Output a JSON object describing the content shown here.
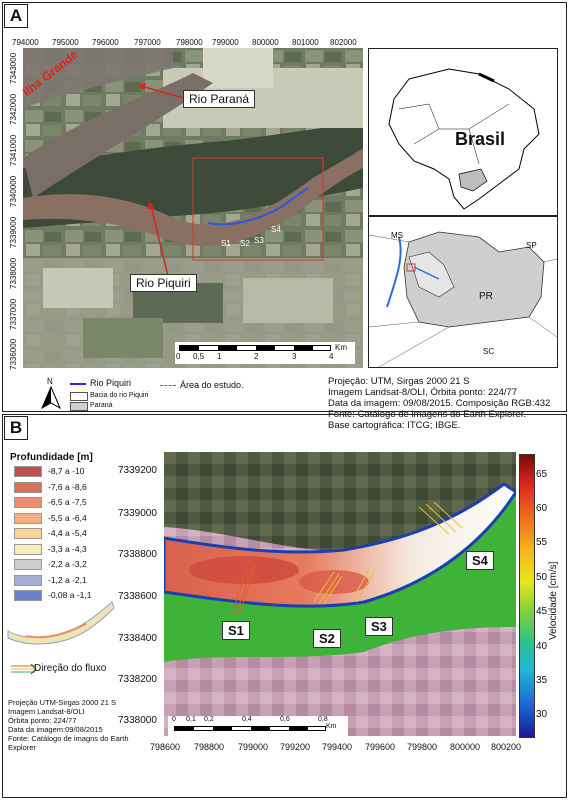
{
  "panel_a": {
    "letter": "A",
    "x_ticks": [
      "794000",
      "795000",
      "796000",
      "797000",
      "798000",
      "799000",
      "800000",
      "801000",
      "802000"
    ],
    "y_ticks": [
      "7343000",
      "7342000",
      "7341000",
      "7340000",
      "7339000",
      "7338000",
      "7337000",
      "7336000"
    ],
    "labels": {
      "ilha_grande": "Ilha Grande",
      "rio_parana": "Rio Paraná",
      "rio_piquiri": "Rio Piquiri",
      "s1": "S1",
      "s2": "S2",
      "s3": "S3",
      "s4": "S4"
    },
    "scalebar": {
      "ticks": [
        "0",
        "0,5",
        "1",
        "2",
        "3",
        "4"
      ],
      "unit": "Km"
    },
    "inset_brasil": {
      "label": "Brasil"
    },
    "inset_parana": {
      "ms": "MS",
      "sp": "SP",
      "pr": "PR",
      "sc": "SC"
    },
    "north": "N",
    "legend": {
      "rio_piquiri": "Rio Piquiri",
      "area_estudo": "Área do estudo.",
      "bacia": "Bacia do rio Piquiri",
      "parana": "Paraná"
    },
    "meta": [
      "Projeção: UTM, Sirgas 2000 21 S",
      "Imagem Landsat-8/OLI, Órbita ponto: 224/77",
      "Data da imagem: 09/08/2015. Composição RGB:432",
      "Fonte: Catálogo de imagens do Earth Explorer.",
      "Base cartográfica: ITCG; IBGE."
    ]
  },
  "panel_b": {
    "letter": "B",
    "depth_legend": {
      "title": "Profundidade [m]",
      "classes": [
        {
          "label": "-8,7 a -10",
          "color": "#c0504d"
        },
        {
          "label": "-7,6 a -8,6",
          "color": "#d9705a"
        },
        {
          "label": "-6,5 a -7,5",
          "color": "#e8906a"
        },
        {
          "label": "-5,5 a -6,4",
          "color": "#f1b07d"
        },
        {
          "label": "-4,4 a -5,4",
          "color": "#f7d395"
        },
        {
          "label": "-3,3 a -4,3",
          "color": "#f6eeb6"
        },
        {
          "label": "-2,2 a -3,2",
          "color": "#cfcfcf"
        },
        {
          "label": "-1,2 a -2,1",
          "color": "#a3aed4"
        },
        {
          "label": "-0,08 a -1,1",
          "color": "#6c7fc9"
        }
      ]
    },
    "flow_label": "Direção do fluxo",
    "meta": [
      "Projeção UTM-Sirgas 2000 21 S",
      "Imagem Landsat-8/OLI",
      "Órbita ponto: 224/77",
      "Data da imagem:09/08/2015",
      "Fonte: Catálogo de imagns do Earth",
      "Explorer"
    ],
    "y_ticks": [
      "7339200",
      "7339000",
      "7338800",
      "7338600",
      "7338400",
      "7338200",
      "7338000"
    ],
    "x_ticks": [
      "798600",
      "798800",
      "799000",
      "799200",
      "799400",
      "799600",
      "799800",
      "800000",
      "800200"
    ],
    "sections": {
      "s1": "S1",
      "s2": "S2",
      "s3": "S3",
      "s4": "S4"
    },
    "scalebar": {
      "ticks": [
        "0",
        "0,1",
        "0,2",
        "0,4",
        "0,6",
        "0,8"
      ],
      "unit": "Km"
    },
    "colorbar": {
      "title": "Velocidade [cm/s]",
      "ticks": [
        "65",
        "60",
        "55",
        "50",
        "45",
        "40",
        "35",
        "30"
      ],
      "range": [
        27,
        68
      ]
    }
  }
}
